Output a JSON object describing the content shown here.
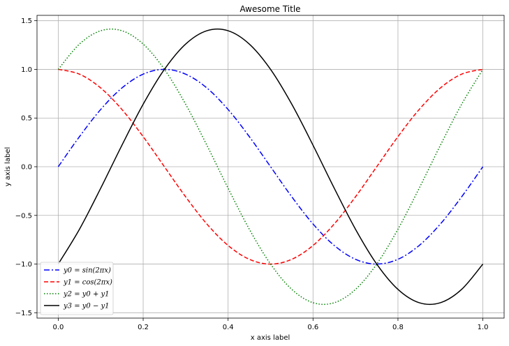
{
  "chart_data": {
    "type": "line",
    "title": "Awesome Title",
    "xlabel": "x axis label",
    "ylabel": "y axis label",
    "xlim": [
      -0.05,
      1.05
    ],
    "ylim": [
      -1.555,
      1.555
    ],
    "xticks": [
      0.0,
      0.2,
      0.4,
      0.6,
      0.8,
      1.0
    ],
    "xtick_labels": [
      "0.0",
      "0.2",
      "0.4",
      "0.6",
      "0.8",
      "1.0"
    ],
    "yticks": [
      -1.5,
      -1.0,
      -0.5,
      0.0,
      0.5,
      1.0,
      1.5
    ],
    "ytick_labels": [
      "−1.5",
      "−1.0",
      "−0.5",
      "0.0",
      "0.5",
      "1.0",
      "1.5"
    ],
    "grid": true,
    "legend_position": "lower-left",
    "series": [
      {
        "name": "y0 = sin(2πx)",
        "color": "#0000ff",
        "style": "dashdot",
        "x": [
          0.0,
          0.05,
          0.1,
          0.15,
          0.2,
          0.25,
          0.3,
          0.35,
          0.4,
          0.45,
          0.5,
          0.55,
          0.6,
          0.65,
          0.7,
          0.75,
          0.8,
          0.85,
          0.9,
          0.95,
          1.0
        ],
        "y": [
          0.0,
          0.309,
          0.588,
          0.809,
          0.951,
          1.0,
          0.951,
          0.809,
          0.588,
          0.309,
          0.0,
          -0.309,
          -0.588,
          -0.809,
          -0.951,
          -1.0,
          -0.951,
          -0.809,
          -0.588,
          -0.309,
          0.0
        ]
      },
      {
        "name": "y1 = cos(2πx)",
        "color": "#ff0000",
        "style": "dashed",
        "x": [
          0.0,
          0.05,
          0.1,
          0.15,
          0.2,
          0.25,
          0.3,
          0.35,
          0.4,
          0.45,
          0.5,
          0.55,
          0.6,
          0.65,
          0.7,
          0.75,
          0.8,
          0.85,
          0.9,
          0.95,
          1.0
        ],
        "y": [
          1.0,
          0.951,
          0.809,
          0.588,
          0.309,
          0.0,
          -0.309,
          -0.588,
          -0.809,
          -0.951,
          -1.0,
          -0.951,
          -0.809,
          -0.588,
          -0.309,
          0.0,
          0.309,
          0.588,
          0.809,
          0.951,
          1.0
        ]
      },
      {
        "name": "y2 = y0 + y1",
        "color": "#008000",
        "style": "dotted",
        "x": [
          0.0,
          0.05,
          0.1,
          0.15,
          0.2,
          0.25,
          0.3,
          0.35,
          0.4,
          0.45,
          0.5,
          0.55,
          0.6,
          0.65,
          0.7,
          0.75,
          0.8,
          0.85,
          0.9,
          0.95,
          1.0
        ],
        "y": [
          1.0,
          1.26,
          1.397,
          1.397,
          1.26,
          1.0,
          0.642,
          0.221,
          -0.221,
          -0.642,
          -1.0,
          -1.26,
          -1.397,
          -1.397,
          -1.26,
          -1.0,
          -0.642,
          -0.221,
          0.221,
          0.642,
          1.0
        ]
      },
      {
        "name": "y3 = y0 − y1",
        "color": "#000000",
        "style": "solid",
        "x": [
          0.0,
          0.05,
          0.1,
          0.15,
          0.2,
          0.25,
          0.3,
          0.35,
          0.4,
          0.45,
          0.5,
          0.55,
          0.6,
          0.65,
          0.7,
          0.75,
          0.8,
          0.85,
          0.9,
          0.95,
          1.0
        ],
        "y": [
          -1.0,
          -0.642,
          -0.221,
          0.221,
          0.642,
          1.0,
          1.26,
          1.397,
          1.397,
          1.26,
          1.0,
          0.642,
          0.221,
          -0.221,
          -0.642,
          -1.0,
          -1.26,
          -1.397,
          -1.397,
          -1.26,
          -1.0
        ]
      }
    ]
  }
}
